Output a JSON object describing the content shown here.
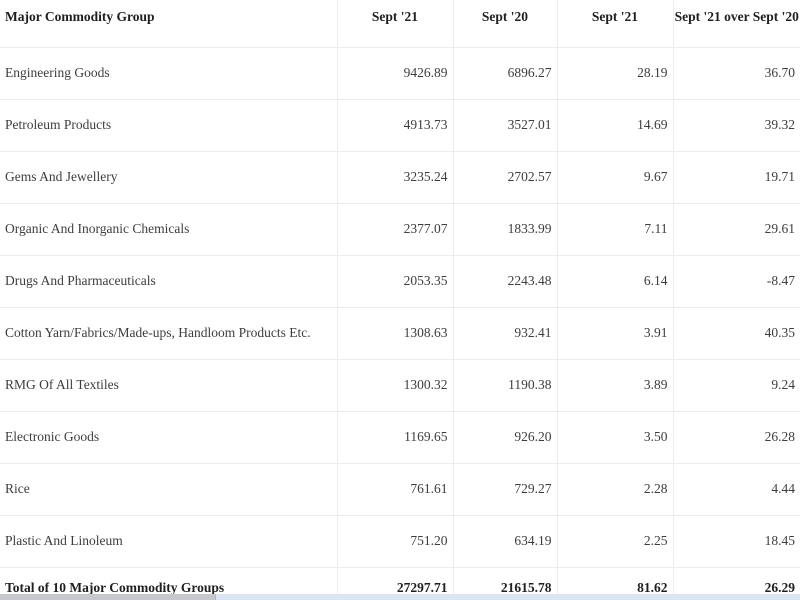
{
  "table": {
    "columns": [
      "Major Commodity Group",
      "Sept '21",
      "Sept '20",
      "Sept '21",
      "Sept '21 over Sept '20"
    ],
    "rows": [
      [
        "Engineering Goods",
        "9426.89",
        "6896.27",
        "28.19",
        "36.70"
      ],
      [
        "Petroleum Products",
        "4913.73",
        "3527.01",
        "14.69",
        "39.32"
      ],
      [
        "Gems And Jewellery",
        "3235.24",
        "2702.57",
        "9.67",
        "19.71"
      ],
      [
        "Organic And Inorganic Chemicals",
        "2377.07",
        "1833.99",
        "7.11",
        "29.61"
      ],
      [
        "Drugs And Pharmaceuticals",
        "2053.35",
        "2243.48",
        "6.14",
        "-8.47"
      ],
      [
        "Cotton Yarn/Fabrics/Made-ups, Handloom Products Etc.",
        "1308.63",
        "932.41",
        "3.91",
        "40.35"
      ],
      [
        "RMG Of All Textiles",
        "1300.32",
        "1190.38",
        "3.89",
        "9.24"
      ],
      [
        "Electronic Goods",
        "1169.65",
        "926.20",
        "3.50",
        "26.28"
      ],
      [
        "Rice",
        "761.61",
        "729.27",
        "2.28",
        "4.44"
      ],
      [
        "Plastic And Linoleum",
        "751.20",
        "634.19",
        "2.25",
        "18.45"
      ]
    ],
    "total_row": [
      "Total of 10 Major Commodity Groups",
      "27297.71",
      "21615.78",
      "81.62",
      "26.29"
    ]
  },
  "colors": {
    "border": "#ececec",
    "text": "#3d3d3d",
    "header_text": "#1f1f1f",
    "scrollbar_track": "#dbe4f3",
    "scrollbar_thumb": "#c6c8cc"
  }
}
